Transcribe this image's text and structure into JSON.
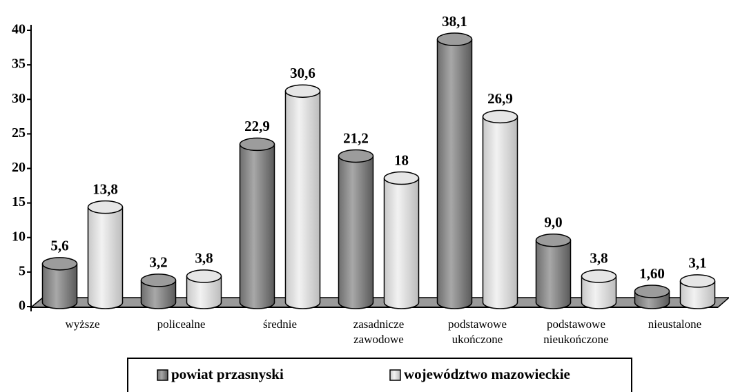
{
  "chart_data": {
    "type": "bar",
    "categories": [
      "wyższe",
      "policealne",
      "średnie",
      "zasadnicze\nzawodowe",
      "podstawowe\nukończone",
      "podstawowe\nnieukończone",
      "nieustalone"
    ],
    "series": [
      {
        "name": "powiat przasnyski",
        "color": "#8c8c8c",
        "values": [
          5.6,
          3.2,
          22.9,
          21.2,
          38.1,
          9.0,
          1.6
        ],
        "value_labels": [
          "5,6",
          "3,2",
          "22,9",
          "21,2",
          "38,1",
          "9,0",
          "1,60"
        ]
      },
      {
        "name": "województwo mazowieckie",
        "color": "#dcdcdc",
        "values": [
          13.8,
          3.8,
          30.6,
          18,
          26.9,
          3.8,
          3.1
        ],
        "value_labels": [
          "13,8",
          "3,8",
          "30,6",
          "18",
          "26,9",
          "3,8",
          "3,1"
        ]
      }
    ],
    "ylim": [
      0,
      40
    ],
    "yticks": [
      0,
      5,
      10,
      15,
      20,
      25,
      30,
      35,
      40
    ]
  }
}
